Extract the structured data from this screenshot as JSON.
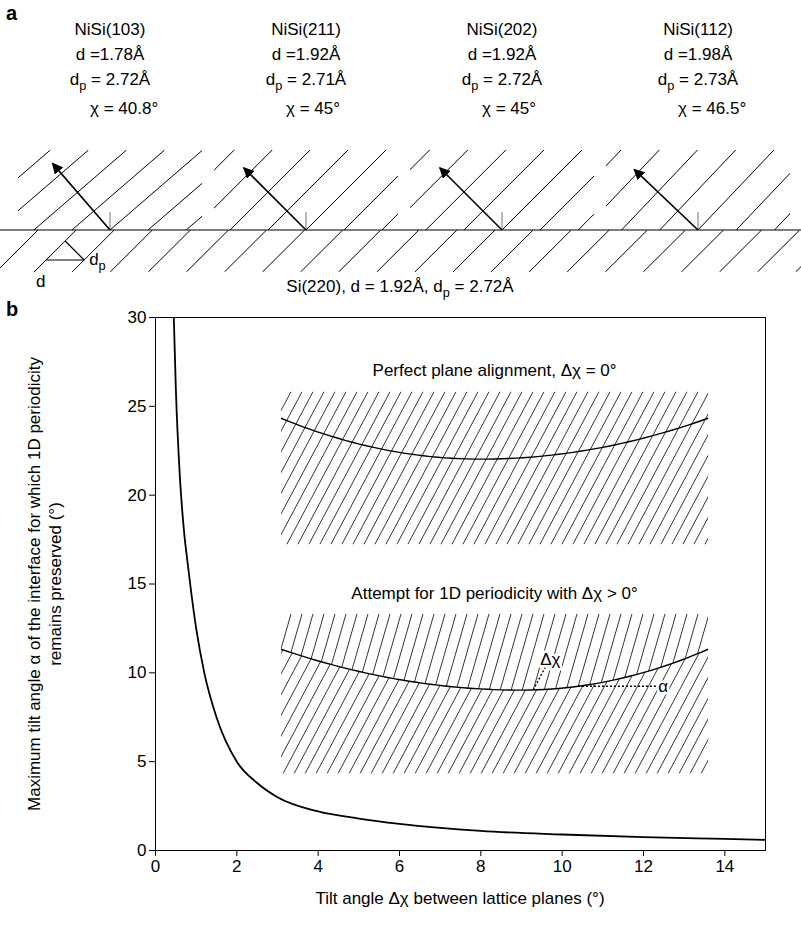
{
  "diagram": {
    "panel": "a",
    "phases": [
      {
        "name": "NiSi(103)",
        "d_label": "d =1.78Å",
        "dp_label": [
          {
            "text": "d"
          },
          {
            "sub": "p"
          },
          {
            "text": " = 2.72Å"
          }
        ],
        "dp": 2.72,
        "chi": 40.8,
        "chi_label": "χ = 40.8°"
      },
      {
        "name": "NiSi(211)",
        "d_label": "d =1.92Å",
        "dp_label": [
          {
            "text": "d"
          },
          {
            "sub": "p"
          },
          {
            "text": " = 2.71Å"
          }
        ],
        "dp": 2.71,
        "chi": 45,
        "chi_label": "χ = 45°"
      },
      {
        "name": "NiSi(202)",
        "d_label": "d =1.92Å",
        "dp_label": [
          {
            "text": "d"
          },
          {
            "sub": "p"
          },
          {
            "text": " = 2.72Å"
          }
        ],
        "dp": 2.72,
        "chi": 45,
        "chi_label": "χ = 45°"
      },
      {
        "name": "NiSi(112)",
        "d_label": "d =1.98Å",
        "dp_label": [
          {
            "text": "d"
          },
          {
            "sub": "p"
          },
          {
            "text": " = 2.73Å"
          }
        ],
        "dp": 2.73,
        "chi": 46.5,
        "chi_label": "χ = 46.5°"
      }
    ],
    "substrate": {
      "label": [
        {
          "text": "Si(220), d = 1.92Å, d"
        },
        {
          "sub": "p"
        },
        {
          "text": " = 2.72Å"
        }
      ],
      "d": 1.92,
      "dp": 2.72,
      "d_marker": "d",
      "dp_marker": [
        {
          "text": "d"
        },
        {
          "sub": "p"
        }
      ]
    }
  },
  "chart_data": {
    "type": "line",
    "panel": "b",
    "x_label": "Tilt angle Δχ between lattice planes (°)",
    "y_label": "Maximum tilt angle α of the interface for which 1D periodicity remains preserved (°)",
    "x": [
      0.45,
      0.5,
      0.6,
      0.7,
      0.8,
      1,
      1.2,
      1.5,
      2,
      2.5,
      3,
      4,
      5,
      6,
      8,
      10,
      12,
      14,
      15
    ],
    "values": [
      30,
      26,
      21,
      18,
      16,
      12.5,
      10,
      7.5,
      5,
      3.8,
      3,
      2.2,
      1.8,
      1.5,
      1.1,
      0.9,
      0.75,
      0.65,
      0.6
    ],
    "color": "#000000",
    "xlim": [
      0,
      15
    ],
    "ylim": [
      0,
      30
    ],
    "xticks": [
      0,
      2,
      4,
      6,
      8,
      10,
      12,
      14
    ],
    "yticks": [
      0,
      5,
      10,
      15,
      20,
      25,
      30
    ],
    "insets": [
      {
        "title": "Perfect plane alignment, Δχ = 0°"
      },
      {
        "title": "Attempt for 1D periodicity with Δχ > 0°",
        "labels": [
          "Δχ",
          "α"
        ]
      }
    ]
  }
}
